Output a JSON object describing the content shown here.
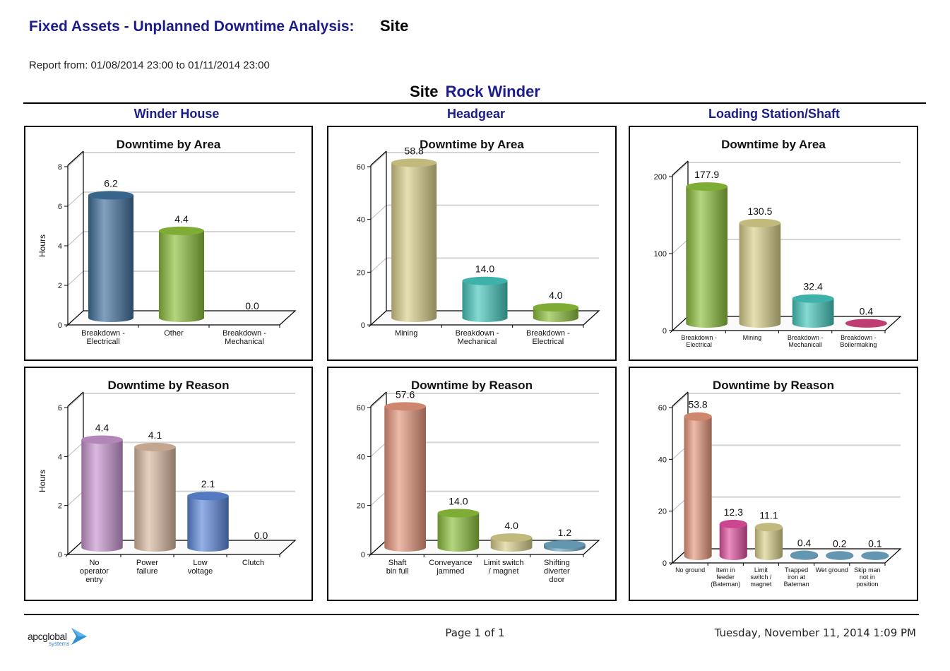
{
  "header": {
    "title": "Fixed Assets - Unplanned Downtime Analysis:",
    "title_value": "Site",
    "report_range": "Report from: 01/08/2014 23:00 to 01/11/2014 23:00"
  },
  "site": {
    "label": "Site",
    "value": "Rock Winder"
  },
  "columns": [
    "Winder House",
    "Headgear",
    "Loading Station/Shaft"
  ],
  "footer": {
    "page": "Page 1 of 1",
    "date": "Tuesday, November 11, 2014 1:09 PM",
    "logo_text": "apcglobal",
    "logo_sub": "systems"
  },
  "chart_data": [
    {
      "id": "wh-area",
      "type": "bar",
      "title": "Downtime by Area",
      "ylabel": "Hours",
      "ylim": [
        0,
        8
      ],
      "yticks": [
        0,
        2,
        4,
        6,
        8
      ],
      "categories": [
        [
          "Breakdown -",
          "Electricall"
        ],
        [
          "Other"
        ],
        [
          "Breakdown -",
          "Mechanical"
        ]
      ],
      "values": [
        6.2,
        4.4,
        0.0
      ],
      "labels": [
        "6.2",
        "4.4",
        "0.0"
      ],
      "colors": [
        "#3f6f9c",
        "#8cbf3a",
        "#c0c0c0"
      ]
    },
    {
      "id": "hg-area",
      "type": "bar",
      "title": "Downtime by Area",
      "ylabel": "",
      "ylim": [
        0,
        60
      ],
      "yticks": [
        0,
        20,
        40,
        60
      ],
      "categories": [
        [
          "Mining"
        ],
        [
          "Breakdown -",
          "Mechanical"
        ],
        [
          "Breakdown -",
          "Electrical"
        ]
      ],
      "values": [
        58.8,
        14.0,
        4.0
      ],
      "labels": [
        "58.8",
        "14.0",
        "4.0"
      ],
      "colors": [
        "#d8cf8a",
        "#45c6bd",
        "#8cbf3a"
      ]
    },
    {
      "id": "ls-area",
      "type": "bar",
      "title": "Downtime by Area",
      "ylabel": "",
      "ylim": [
        0,
        200
      ],
      "yticks": [
        0,
        100,
        200
      ],
      "categories": [
        [
          "Breakdown -",
          "Electrical"
        ],
        [
          "Mining"
        ],
        [
          "Breakdown -",
          "Mechanicall"
        ],
        [
          "Breakdown -",
          "Boilermaking"
        ]
      ],
      "values": [
        177.9,
        130.5,
        32.4,
        0.4
      ],
      "labels": [
        "177.9",
        "130.5",
        "32.4",
        "0.4"
      ],
      "colors": [
        "#8cbf3a",
        "#d8cf8a",
        "#45c6bd",
        "#d4457f"
      ]
    },
    {
      "id": "wh-reason",
      "type": "bar",
      "title": "Downtime by Reason",
      "ylabel": "Hours",
      "ylim": [
        0,
        6
      ],
      "yticks": [
        0,
        2,
        4,
        6
      ],
      "categories": [
        [
          "No",
          "operator",
          "entry"
        ],
        [
          "Power",
          "failure"
        ],
        [
          "Low",
          "voltage"
        ],
        [
          "Clutch"
        ]
      ],
      "values": [
        4.4,
        4.1,
        2.1,
        0.0
      ],
      "labels": [
        "4.4",
        "4.1",
        "2.1",
        "0.0"
      ],
      "colors": [
        "#c795cf",
        "#d9b8a0",
        "#5b86d8",
        "#c0c0c0"
      ]
    },
    {
      "id": "hg-reason",
      "type": "bar",
      "title": "Downtime by Reason",
      "ylabel": "",
      "ylim": [
        0,
        60
      ],
      "yticks": [
        0,
        20,
        40,
        60
      ],
      "categories": [
        [
          "Shaft",
          "bin full"
        ],
        [
          "Conveyance",
          "jammed"
        ],
        [
          "Limit switch",
          "/ magnet"
        ],
        [
          "Shifting",
          "diverter",
          "door"
        ]
      ],
      "values": [
        57.6,
        14.0,
        4.0,
        1.2
      ],
      "labels": [
        "57.6",
        "14.0",
        "4.0",
        "1.2"
      ],
      "colors": [
        "#e5957a",
        "#8cbf3a",
        "#d8cf8a",
        "#6ea7c4"
      ]
    },
    {
      "id": "ls-reason",
      "type": "bar",
      "title": "Downtime by Reason",
      "ylabel": "",
      "ylim": [
        0,
        60
      ],
      "yticks": [
        0,
        20,
        40,
        60
      ],
      "categories": [
        [
          "No ground"
        ],
        [
          "Item in",
          "feeder",
          "(Bateman)"
        ],
        [
          "Limit",
          "switch /",
          "magnet"
        ],
        [
          "Trapped",
          "iron at",
          "Bateman"
        ],
        [
          "Wet ground"
        ],
        [
          "Skip man",
          "not in",
          "position"
        ]
      ],
      "values": [
        53.8,
        12.3,
        11.1,
        0.4,
        0.2,
        0.1
      ],
      "labels": [
        "53.8",
        "12.3",
        "11.1",
        "0.4",
        "0.2",
        "0.1"
      ],
      "colors": [
        "#e5957a",
        "#e04fa0",
        "#d8cf8a",
        "#6ea7c4",
        "#6ea7c4",
        "#6ea7c4"
      ]
    }
  ]
}
